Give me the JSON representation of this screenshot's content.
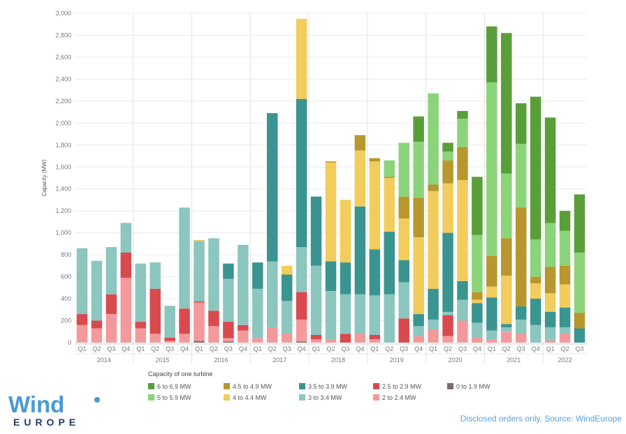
{
  "chart_data": {
    "type": "bar",
    "stacked": true,
    "ylabel": "Capacity (MW)",
    "ylim": [
      0,
      3000
    ],
    "y_ticks": [
      "0",
      "200",
      "400",
      "600",
      "800",
      "1,000",
      "1,200",
      "1,400",
      "1,600",
      "1,800",
      "2,000",
      "2,200",
      "2,400",
      "2,600",
      "2,800",
      "3,000"
    ],
    "grid": true,
    "quarters": [
      "Q1",
      "Q2",
      "Q3",
      "Q4",
      "Q1",
      "Q2",
      "Q3",
      "Q4",
      "Q1",
      "Q2",
      "Q3",
      "Q4",
      "Q1",
      "Q2",
      "Q3",
      "Q4",
      "Q1",
      "Q2",
      "Q3",
      "Q4",
      "Q1",
      "Q2",
      "Q3",
      "Q4",
      "Q1",
      "Q2",
      "Q3",
      "Q4",
      "Q1",
      "Q2",
      "Q3",
      "Q4",
      "Q1",
      "Q2",
      "Q3"
    ],
    "years": [
      {
        "label": "2014",
        "count": 4
      },
      {
        "label": "2015",
        "count": 4
      },
      {
        "label": "2016",
        "count": 4
      },
      {
        "label": "2017",
        "count": 4
      },
      {
        "label": "2018",
        "count": 4
      },
      {
        "label": "2019",
        "count": 4
      },
      {
        "label": "2020",
        "count": 4
      },
      {
        "label": "2021",
        "count": 4
      },
      {
        "label": "2022",
        "count": 3
      }
    ],
    "legend_title": "Capacity of one turbine",
    "series": [
      {
        "name": "0 to 1.9 MW",
        "color": "#7a6e6a",
        "values": [
          0,
          0,
          0,
          0,
          0,
          0,
          0,
          0,
          15,
          0,
          10,
          0,
          0,
          0,
          0,
          10,
          0,
          0,
          0,
          0,
          0,
          0,
          0,
          0,
          0,
          0,
          0,
          0,
          0,
          0,
          0,
          0,
          0,
          0,
          0
        ]
      },
      {
        "name": "2 to 2.4 MW",
        "color": "#f4999b",
        "values": [
          160,
          130,
          260,
          590,
          130,
          80,
          15,
          80,
          350,
          150,
          30,
          110,
          40,
          140,
          80,
          200,
          30,
          30,
          0,
          80,
          30,
          0,
          0,
          60,
          120,
          60,
          200,
          50,
          30,
          100,
          80,
          0,
          20,
          80,
          0
        ]
      },
      {
        "name": "2.5 to 2.9 MW",
        "color": "#d94a4e",
        "values": [
          100,
          70,
          180,
          230,
          60,
          410,
          30,
          230,
          10,
          140,
          150,
          50,
          0,
          0,
          0,
          250,
          40,
          0,
          80,
          0,
          40,
          0,
          220,
          0,
          0,
          190,
          0,
          0,
          0,
          0,
          0,
          0,
          0,
          0,
          0
        ]
      },
      {
        "name": "3 to 3.4 MW",
        "color": "#8bc6bf",
        "values": [
          600,
          545,
          430,
          270,
          530,
          240,
          290,
          920,
          550,
          660,
          390,
          730,
          450,
          600,
          300,
          410,
          630,
          440,
          360,
          360,
          360,
          440,
          330,
          90,
          90,
          30,
          190,
          130,
          80,
          40,
          130,
          160,
          120,
          60,
          0
        ]
      },
      {
        "name": "3.5 to 3.9 MW",
        "color": "#3a9490",
        "values": [
          0,
          0,
          0,
          0,
          0,
          0,
          0,
          0,
          0,
          0,
          140,
          0,
          240,
          1350,
          240,
          1350,
          630,
          270,
          290,
          800,
          420,
          570,
          200,
          110,
          280,
          720,
          170,
          180,
          300,
          30,
          120,
          240,
          140,
          180,
          130
        ]
      },
      {
        "name": "4 to 4.4 MW",
        "color": "#f2cc5c",
        "values": [
          0,
          0,
          0,
          0,
          0,
          0,
          0,
          0,
          10,
          0,
          0,
          0,
          0,
          0,
          80,
          730,
          0,
          900,
          570,
          510,
          800,
          490,
          380,
          700,
          890,
          450,
          920,
          30,
          100,
          440,
          0,
          140,
          170,
          210,
          0
        ]
      },
      {
        "name": "4.5 to 4.9 MW",
        "color": "#b8972e",
        "values": [
          0,
          0,
          0,
          0,
          0,
          0,
          0,
          0,
          0,
          0,
          0,
          0,
          0,
          0,
          0,
          0,
          0,
          10,
          0,
          140,
          30,
          10,
          200,
          360,
          60,
          210,
          300,
          70,
          280,
          340,
          900,
          60,
          240,
          170,
          140
        ]
      },
      {
        "name": "5 to 5.9 MW",
        "color": "#8bd47a",
        "values": [
          0,
          0,
          0,
          0,
          0,
          0,
          0,
          0,
          0,
          0,
          0,
          0,
          0,
          0,
          0,
          0,
          0,
          0,
          0,
          0,
          0,
          150,
          490,
          510,
          830,
          80,
          260,
          520,
          1580,
          590,
          580,
          340,
          400,
          320,
          550
        ]
      },
      {
        "name": "6 to 6.9 MW",
        "color": "#5a9e3a",
        "values": [
          0,
          0,
          0,
          0,
          0,
          0,
          0,
          0,
          0,
          0,
          0,
          0,
          0,
          0,
          0,
          0,
          0,
          0,
          0,
          0,
          0,
          0,
          0,
          230,
          0,
          80,
          70,
          530,
          510,
          1280,
          370,
          1300,
          960,
          180,
          530
        ]
      }
    ]
  },
  "logo": {
    "word": "Wind",
    "sub": "EUROPE"
  },
  "source_note": "Disclosed orders only. Source: WindEurope"
}
